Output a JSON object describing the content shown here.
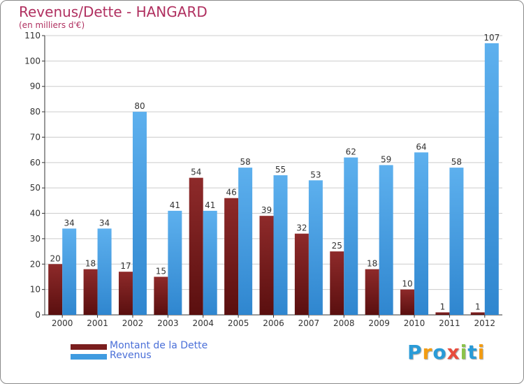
{
  "chart_data": {
    "type": "bar",
    "title": "Revenus/Dette - HANGARD",
    "subtitle": "(en milliers d'€)",
    "xlabel": "",
    "ylabel": "",
    "ylim": [
      0,
      110
    ],
    "yticks": [
      0,
      10,
      20,
      30,
      40,
      50,
      60,
      70,
      80,
      90,
      100,
      110
    ],
    "grid": true,
    "categories": [
      "2000",
      "2001",
      "2002",
      "2003",
      "2004",
      "2005",
      "2006",
      "2007",
      "2008",
      "2009",
      "2010",
      "2011",
      "2012"
    ],
    "series": [
      {
        "name": "Montant de la Dette",
        "color": "#7a1e1e",
        "values": [
          20,
          18,
          17,
          15,
          54,
          46,
          39,
          32,
          25,
          18,
          10,
          1,
          1
        ]
      },
      {
        "name": "Revenus",
        "color": "#3f9be0",
        "values": [
          34,
          34,
          80,
          41,
          41,
          58,
          55,
          53,
          62,
          59,
          64,
          58,
          107
        ]
      }
    ],
    "legend": "bottom-left"
  },
  "colors": {
    "title": "#b03060",
    "legend_text": "#4a6fd8",
    "axis": "#333333",
    "grid": "#cccccc"
  },
  "logo": {
    "text": "Proxiti",
    "letters": [
      "P",
      "r",
      "o",
      "x",
      "i",
      "t",
      "i"
    ],
    "letter_colors": [
      "#2a9bd7",
      "#f39c12",
      "#2a9bd7",
      "#e84c3d",
      "#8bc34a",
      "#2a9bd7",
      "#f39c12"
    ]
  }
}
